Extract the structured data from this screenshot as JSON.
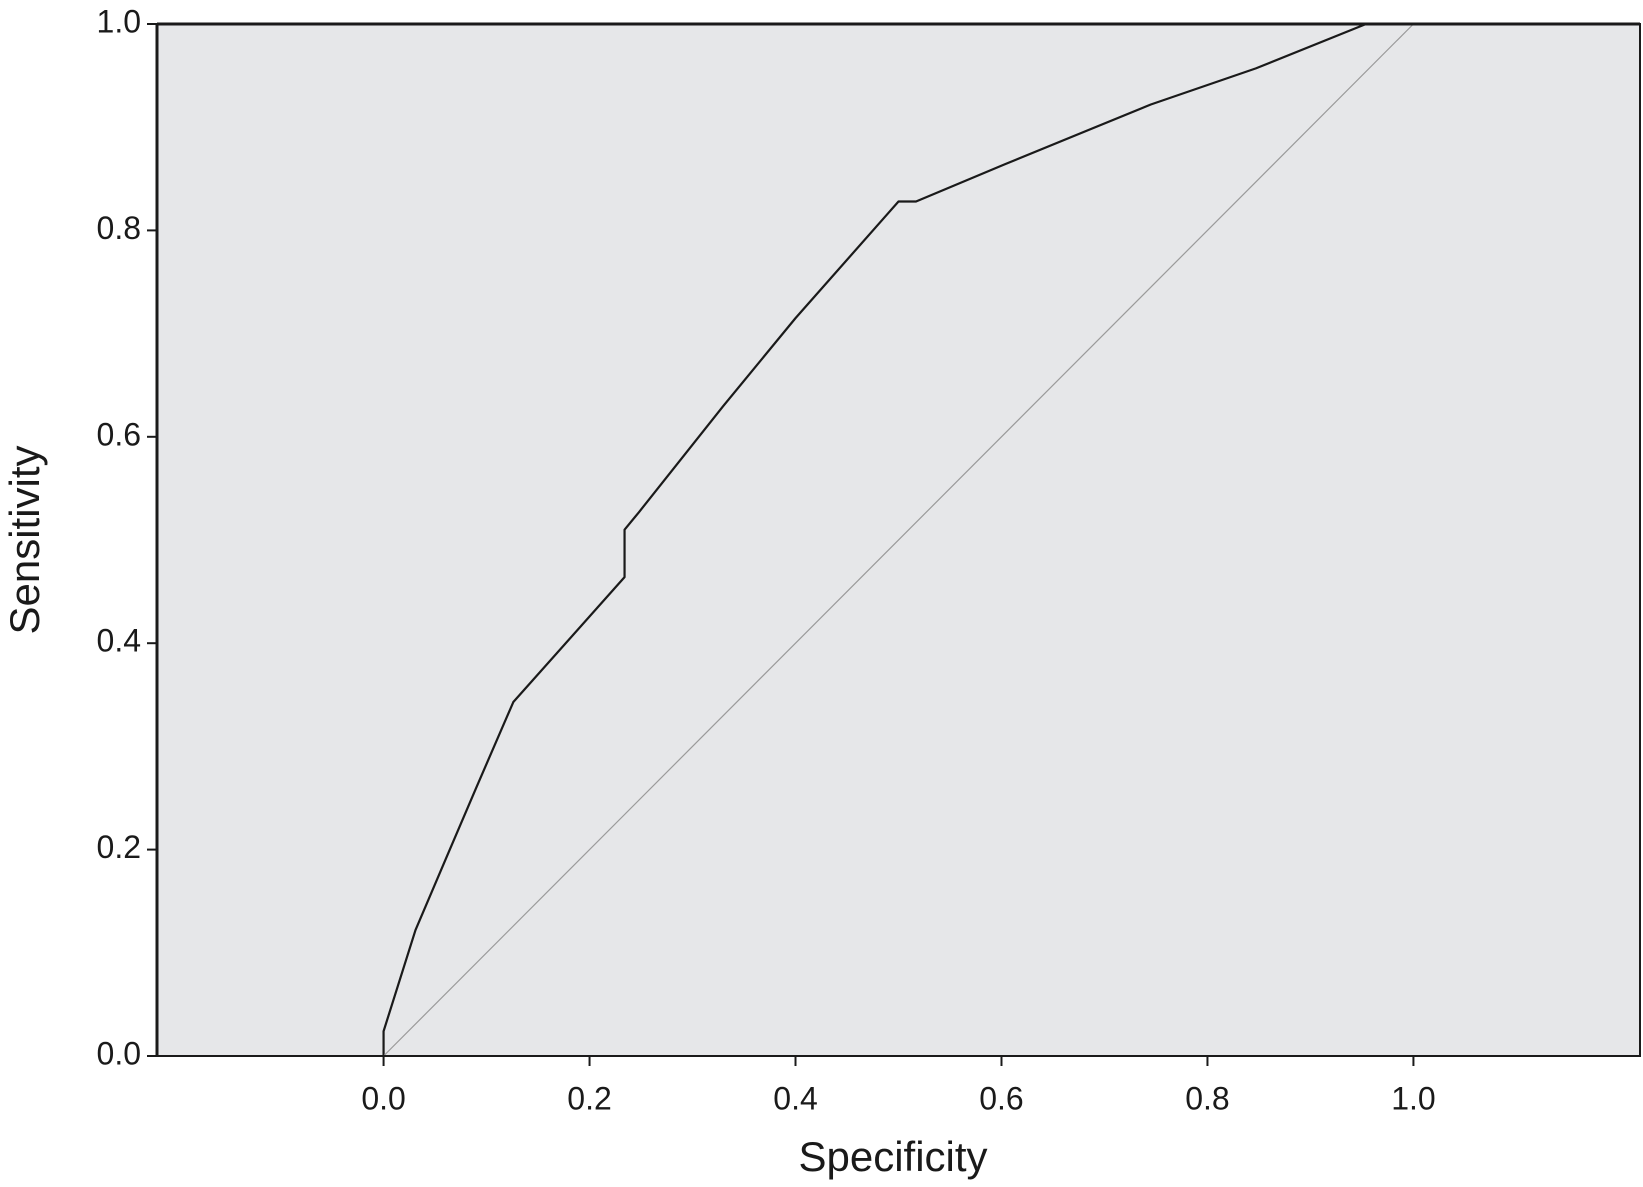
{
  "chart_data": {
    "type": "line",
    "x_label": "Specificity",
    "y_label": "Sensitivity",
    "xlim": [
      -0.22,
      1.22
    ],
    "ylim": [
      0,
      1
    ],
    "xticks": [
      {
        "value": 0,
        "label": "0.0"
      },
      {
        "value": 0.2,
        "label": "0.2"
      },
      {
        "value": 0.4,
        "label": "0.4"
      },
      {
        "value": 0.6,
        "label": "0.6"
      },
      {
        "value": 0.8,
        "label": "0.8"
      },
      {
        "value": 1,
        "label": "1.0"
      }
    ],
    "yticks": [
      {
        "value": 0,
        "label": "0.0"
      },
      {
        "value": 0.2,
        "label": "0.2"
      },
      {
        "value": 0.4,
        "label": "0.4"
      },
      {
        "value": 0.6,
        "label": "0.6"
      },
      {
        "value": 0.8,
        "label": "0.8"
      },
      {
        "value": 1,
        "label": "1.0"
      }
    ],
    "background": "#e6e7e9",
    "series": [
      {
        "color": "#1a1a1a",
        "x": [
          0,
          0,
          0.031,
          0.06,
          0.09,
          0.126,
          0.234,
          0.234,
          0.248,
          0.33,
          0.4,
          0.5,
          0.517,
          0.603,
          0.745,
          0.847,
          0.954,
          1
        ],
        "values": [
          0,
          0.024,
          0.122,
          0.19,
          0.26,
          0.343,
          0.464,
          0.51,
          0.527,
          0.63,
          0.715,
          0.828,
          0.828,
          0.864,
          0.922,
          0.957,
          1,
          1
        ]
      },
      {
        "color": "#9a9a9a",
        "x": [
          0,
          1
        ],
        "values": [
          0,
          1
        ]
      }
    ]
  }
}
